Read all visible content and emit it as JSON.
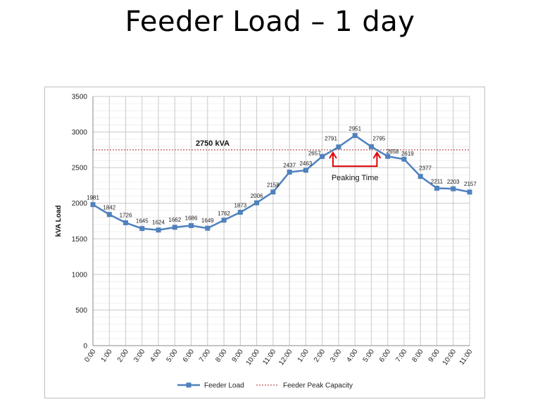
{
  "slide": {
    "title": "Feeder Load – 1 day"
  },
  "chart_data": {
    "type": "line",
    "title": "",
    "xlabel": "",
    "ylabel": "kVA Load",
    "ylim": [
      0,
      3500
    ],
    "yticks": [
      0,
      500,
      1000,
      1500,
      2000,
      2500,
      3000,
      3500
    ],
    "grid": true,
    "categories": [
      "0:00",
      "1:00",
      "2:00",
      "3:00",
      "4:00",
      "5:00",
      "6:00",
      "7:00",
      "8:00",
      "9:00",
      "10:00",
      "11:00",
      "12:00",
      "1:00",
      "2:00",
      "3:00",
      "4:00",
      "5:00",
      "6:00",
      "7:00",
      "8:00",
      "9:00",
      "10:00",
      "11:00"
    ],
    "series": [
      {
        "name": "Feeder Load",
        "color": "#4f81bd",
        "marker": "square",
        "values": [
          1981,
          1842,
          1726,
          1645,
          1624,
          1662,
          1686,
          1649,
          1762,
          1873,
          2006,
          2158,
          2437,
          2463,
          2657,
          2791,
          2951,
          2795,
          2658,
          2619,
          2377,
          2211,
          2203,
          2157
        ]
      },
      {
        "name": "Feeder Peak Capacity",
        "color": "#c0504d",
        "style": "dotted",
        "constant": 2750
      }
    ],
    "annotations": [
      {
        "text": "2750 kVA",
        "attached_to": "Feeder Peak Capacity"
      },
      {
        "text": "Peaking Time",
        "from_category_index": 15,
        "to_category_index": 17,
        "color": "#e00000"
      }
    ],
    "legend_position": "bottom"
  }
}
